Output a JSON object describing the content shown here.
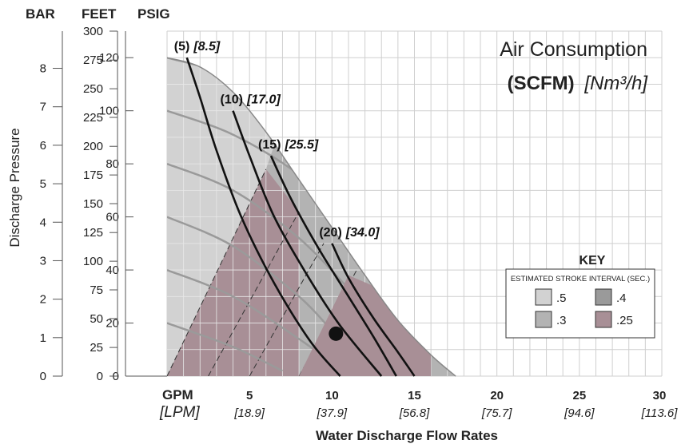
{
  "chart_data": {
    "type": "line",
    "title": "Air Consumption",
    "title_units_bold": "(SCFM)",
    "title_units_metric": "[Nm³/h]",
    "xlabel": "Water Discharge Flow Rates",
    "ylabel": "Discharge Pressure",
    "x_unit_primary": "GPM",
    "x_unit_secondary": "[LPM]",
    "xlim": [
      0,
      30
    ],
    "ylim_psig": [
      0,
      130
    ],
    "grid": true,
    "axes": {
      "bar_header": "BAR",
      "feet_header": "FEET",
      "psig_header": "PSIG",
      "bar_ticks": [
        {
          "label": "0",
          "psig": 0
        },
        {
          "label": "1",
          "psig": 14.5
        },
        {
          "label": "2",
          "psig": 29.0
        },
        {
          "label": "3",
          "psig": 43.5
        },
        {
          "label": "4",
          "psig": 58.0
        },
        {
          "label": "5",
          "psig": 72.5
        },
        {
          "label": "6",
          "psig": 87.0
        },
        {
          "label": "7",
          "psig": 101.5
        },
        {
          "label": "8",
          "psig": 116.0
        }
      ],
      "feet_ticks": [
        {
          "label": "0",
          "psig": 0
        },
        {
          "label": "25",
          "psig": 10.8
        },
        {
          "label": "50",
          "psig": 21.7
        },
        {
          "label": "75",
          "psig": 32.5
        },
        {
          "label": "100",
          "psig": 43.3
        },
        {
          "label": "125",
          "psig": 54.1
        },
        {
          "label": "150",
          "psig": 65.0
        },
        {
          "label": "175",
          "psig": 75.8
        },
        {
          "label": "200",
          "psig": 86.6
        },
        {
          "label": "225",
          "psig": 97.5
        },
        {
          "label": "250",
          "psig": 108.3
        },
        {
          "label": "275",
          "psig": 119.1
        },
        {
          "label": "300",
          "psig": 130.0
        }
      ],
      "psig_ticks": [
        0,
        20,
        40,
        60,
        80,
        100,
        120
      ],
      "x_ticks": [
        {
          "gpm": "5",
          "lpm": "[18.9]",
          "x": 5
        },
        {
          "gpm": "10",
          "lpm": "[37.9]",
          "x": 10
        },
        {
          "gpm": "15",
          "lpm": "[56.8]",
          "x": 15
        },
        {
          "gpm": "20",
          "lpm": "[75.7]",
          "x": 20
        },
        {
          "gpm": "25",
          "lpm": "[94.6]",
          "x": 25
        },
        {
          "gpm": "30",
          "lpm": "[113.6]",
          "x": 30
        }
      ]
    },
    "envelope": [
      [
        0,
        120
      ],
      [
        2,
        116.5
      ],
      [
        4,
        107
      ],
      [
        6,
        92
      ],
      [
        8,
        74
      ],
      [
        10,
        56
      ],
      [
        12,
        38
      ],
      [
        14,
        21
      ],
      [
        16,
        8
      ],
      [
        17.5,
        0
      ]
    ],
    "zones": [
      {
        "interval": ".5",
        "color": "#d2d2d2"
      },
      {
        "interval": ".3",
        "color": "#b3b3b3"
      },
      {
        "interval": ".4",
        "color": "#9a9a9a"
      },
      {
        "interval": ".25",
        "color": "#a88f96"
      }
    ],
    "air_curves": [
      {
        "label": "(5)",
        "metric": "[8.5]",
        "points": [
          [
            1.2,
            120
          ],
          [
            2.0,
            105
          ],
          [
            3.0,
            85
          ],
          [
            4.5,
            60
          ],
          [
            6.5,
            35
          ],
          [
            8.7,
            13
          ],
          [
            10.5,
            0
          ]
        ]
      },
      {
        "label": "(10)",
        "metric": "[17.0]",
        "points": [
          [
            4.0,
            100
          ],
          [
            5.0,
            83
          ],
          [
            6.5,
            60
          ],
          [
            8.5,
            38
          ],
          [
            10.5,
            19
          ],
          [
            13.0,
            0
          ]
        ]
      },
      {
        "label": "(15)",
        "metric": "[25.5]",
        "points": [
          [
            6.3,
            83
          ],
          [
            7.5,
            67
          ],
          [
            9.2,
            48
          ],
          [
            11.0,
            30
          ],
          [
            12.5,
            15
          ],
          [
            13.9,
            0
          ]
        ]
      },
      {
        "label": "(20)",
        "metric": "[34.0]",
        "points": [
          [
            10.0,
            50
          ],
          [
            11.0,
            37
          ],
          [
            12.5,
            22
          ],
          [
            14.0,
            9
          ],
          [
            15.0,
            0
          ]
        ]
      }
    ],
    "pressure_curves": [
      [
        [
          0,
          120
        ],
        [
          4,
          113
        ],
        [
          8,
          100
        ],
        [
          12,
          80
        ],
        [
          16,
          56
        ]
      ],
      [
        [
          0,
          100
        ],
        [
          4,
          91
        ],
        [
          8,
          76
        ],
        [
          12,
          55
        ]
      ],
      [
        [
          0,
          80
        ],
        [
          4,
          70
        ],
        [
          8,
          52
        ],
        [
          11,
          33
        ]
      ],
      [
        [
          0,
          60
        ],
        [
          4,
          49
        ],
        [
          8,
          30
        ],
        [
          10,
          17
        ]
      ],
      [
        [
          0,
          40
        ],
        [
          4,
          30
        ],
        [
          8,
          14
        ],
        [
          10,
          5
        ]
      ],
      [
        [
          0,
          20
        ],
        [
          4,
          11
        ],
        [
          7,
          2
        ]
      ]
    ],
    "interval_lines": [
      [
        [
          0,
          0
        ],
        [
          6,
          78
        ]
      ],
      [
        [
          2.5,
          0
        ],
        [
          8,
          62
        ]
      ],
      [
        [
          5,
          0
        ],
        [
          9.5,
          50
        ]
      ],
      [
        [
          8,
          0
        ],
        [
          11.5,
          40
        ]
      ],
      [
        [
          10,
          0
        ],
        [
          13.5,
          30
        ]
      ],
      [
        [
          12,
          0
        ],
        [
          16,
          20
        ]
      ]
    ],
    "operating_point": {
      "x": 10,
      "y": 16
    },
    "legend": {
      "title": "KEY",
      "subtitle": "ESTIMATED STROKE INTERVAL (SEC.)",
      "placement": "bottom-right",
      "items": [
        {
          "label": ".5",
          "color": "#d2d2d2"
        },
        {
          "label": ".4",
          "color": "#9a9a9a"
        },
        {
          "label": ".3",
          "color": "#b3b3b3"
        },
        {
          "label": ".25",
          "color": "#a88f96"
        }
      ]
    }
  }
}
